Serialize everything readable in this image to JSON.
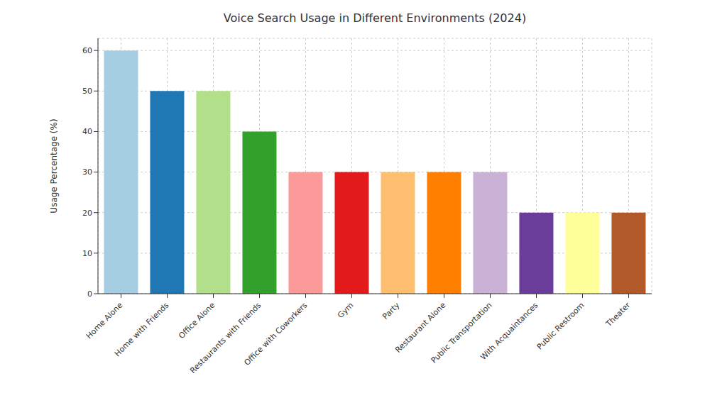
{
  "chart_data": {
    "type": "bar",
    "title": "Voice Search Usage in Different Environments (2024)",
    "y_label": "Usage Percentage (%)",
    "categories": [
      "Home Alone",
      "Home with Friends",
      "Office Alone",
      "Restaurants with Friends",
      "Office with Coworkers",
      "Gym",
      "Party",
      "Restaurant Alone",
      "Public Transportation",
      "With Acquaintances",
      "Public Restroom",
      "Theater"
    ],
    "values": [
      60,
      50,
      50,
      40,
      30,
      30,
      30,
      30,
      30,
      20,
      20,
      20
    ],
    "colors": [
      "#a6cee3",
      "#1f78b4",
      "#b2df8a",
      "#33a02c",
      "#fb9a99",
      "#e31a1c",
      "#fdbf6f",
      "#ff7f00",
      "#cab2d6",
      "#6a3d9a",
      "#ffff99",
      "#b15928"
    ],
    "ylim": [
      0,
      63
    ],
    "yticks": [
      0,
      10,
      20,
      30,
      40,
      50,
      60
    ],
    "grid": true
  }
}
